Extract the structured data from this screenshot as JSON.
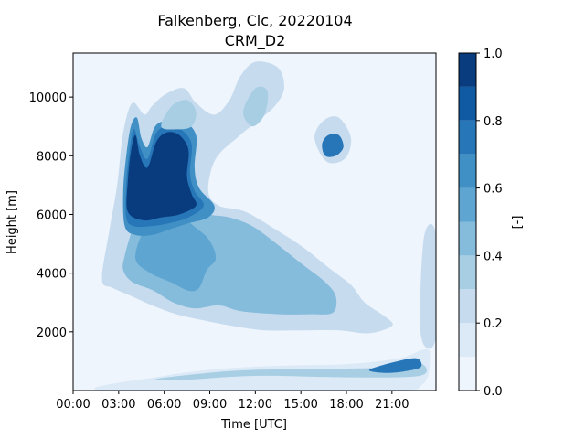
{
  "chart_data": {
    "type": "contour",
    "title": "Falkenberg, Clc, 20220104",
    "subtitle": "CRM_D2",
    "xlabel": "Time [UTC]",
    "ylabel": "Height [m]",
    "xlim": [
      0,
      23.9
    ],
    "ylim": [
      0,
      11500
    ],
    "xticks": [
      "00:00",
      "03:00",
      "06:00",
      "09:00",
      "12:00",
      "15:00",
      "18:00",
      "21:00"
    ],
    "xtick_values": [
      0,
      3,
      6,
      9,
      12,
      15,
      18,
      21
    ],
    "yticks": [
      "2000",
      "4000",
      "6000",
      "8000",
      "10000"
    ],
    "ytick_values": [
      2000,
      4000,
      6000,
      8000,
      10000
    ],
    "colorbar": {
      "label": "[-]",
      "ticks": [
        "0.0",
        "0.2",
        "0.4",
        "0.6",
        "0.8",
        "1.0"
      ],
      "tick_values": [
        0.0,
        0.2,
        0.4,
        0.6,
        0.8,
        1.0
      ],
      "levels": [
        0.0,
        0.1,
        0.2,
        0.3,
        0.4,
        0.5,
        0.6,
        0.7,
        0.8,
        0.9,
        1.0
      ],
      "colors": [
        "#eef5fd",
        "#dce9f7",
        "#c7dbef",
        "#a8cee4",
        "#85bcdc",
        "#5fa5d1",
        "#4090c5",
        "#2676b8",
        "#0f5aa3",
        "#083c7e"
      ]
    },
    "regions": [
      {
        "name": "high-cloud-mass",
        "level_index": 2,
        "points": [
          [
            1.9,
            3800
          ],
          [
            2.4,
            5500
          ],
          [
            2.9,
            7000
          ],
          [
            3.3,
            8800
          ],
          [
            3.9,
            9800
          ],
          [
            4.7,
            9400
          ],
          [
            5.2,
            9700
          ],
          [
            6.1,
            10100
          ],
          [
            7.3,
            10300
          ],
          [
            8.1,
            9800
          ],
          [
            9.3,
            9400
          ],
          [
            10.3,
            9900
          ],
          [
            11.0,
            10700
          ],
          [
            12.0,
            11200
          ],
          [
            13.5,
            11000
          ],
          [
            13.9,
            10300
          ],
          [
            13.3,
            9700
          ],
          [
            12.2,
            9200
          ],
          [
            11.0,
            8700
          ],
          [
            9.4,
            7900
          ],
          [
            8.9,
            6800
          ],
          [
            9.6,
            6300
          ],
          [
            11.3,
            6100
          ],
          [
            13.3,
            5500
          ],
          [
            15.1,
            4900
          ],
          [
            16.8,
            4200
          ],
          [
            18.3,
            3600
          ],
          [
            19.2,
            3000
          ],
          [
            20.6,
            2500
          ],
          [
            21.0,
            2200
          ],
          [
            19.5,
            1950
          ],
          [
            17.5,
            2050
          ],
          [
            15.0,
            2050
          ],
          [
            12.6,
            2050
          ],
          [
            10.5,
            2200
          ],
          [
            8.5,
            2400
          ],
          [
            6.8,
            2600
          ],
          [
            5.2,
            2900
          ],
          [
            3.9,
            3200
          ],
          [
            2.6,
            3500
          ]
        ]
      },
      {
        "name": "mid-cloud-deck",
        "level_index": 4,
        "points": [
          [
            3.3,
            4100
          ],
          [
            3.9,
            3700
          ],
          [
            5.3,
            3400
          ],
          [
            6.6,
            3000
          ],
          [
            8.0,
            2800
          ],
          [
            9.6,
            2900
          ],
          [
            11.1,
            2700
          ],
          [
            13.6,
            2600
          ],
          [
            15.6,
            2600
          ],
          [
            17.1,
            2650
          ],
          [
            17.3,
            3200
          ],
          [
            16.6,
            3700
          ],
          [
            15.1,
            4300
          ],
          [
            13.4,
            5000
          ],
          [
            11.8,
            5600
          ],
          [
            10.3,
            5900
          ],
          [
            9.0,
            6000
          ],
          [
            7.8,
            6300
          ],
          [
            6.8,
            6700
          ],
          [
            5.6,
            6900
          ],
          [
            4.6,
            6500
          ],
          [
            3.9,
            5500
          ],
          [
            3.4,
            4600
          ]
        ]
      },
      {
        "name": "mid-cloud-core",
        "level_index": 5,
        "points": [
          [
            4.1,
            4500
          ],
          [
            5.1,
            4000
          ],
          [
            6.4,
            3700
          ],
          [
            7.6,
            3400
          ],
          [
            8.3,
            3500
          ],
          [
            8.8,
            4100
          ],
          [
            9.4,
            4500
          ],
          [
            9.0,
            5100
          ],
          [
            8.2,
            5500
          ],
          [
            7.1,
            5900
          ],
          [
            5.7,
            6000
          ],
          [
            4.7,
            5500
          ]
        ]
      },
      {
        "name": "upper-cloud-outer",
        "level_index": 6,
        "points": [
          [
            3.4,
            5600
          ],
          [
            3.3,
            6800
          ],
          [
            3.5,
            8000
          ],
          [
            3.8,
            9000
          ],
          [
            4.2,
            9300
          ],
          [
            4.5,
            8600
          ],
          [
            4.9,
            8300
          ],
          [
            5.4,
            9000
          ],
          [
            6.2,
            9200
          ],
          [
            7.2,
            9200
          ],
          [
            8.1,
            8700
          ],
          [
            8.0,
            7600
          ],
          [
            8.3,
            6900
          ],
          [
            9.3,
            6300
          ],
          [
            8.9,
            5900
          ],
          [
            7.6,
            5700
          ],
          [
            6.4,
            5500
          ],
          [
            5.2,
            5300
          ],
          [
            4.1,
            5300
          ]
        ]
      },
      {
        "name": "upper-cloud-mid",
        "level_index": 7,
        "points": [
          [
            3.5,
            5900
          ],
          [
            3.5,
            7000
          ],
          [
            3.7,
            8100
          ],
          [
            4.0,
            8900
          ],
          [
            4.4,
            8300
          ],
          [
            4.9,
            7900
          ],
          [
            5.5,
            8800
          ],
          [
            6.3,
            9000
          ],
          [
            7.1,
            8900
          ],
          [
            7.8,
            8400
          ],
          [
            7.7,
            7400
          ],
          [
            8.0,
            6800
          ],
          [
            8.6,
            6300
          ],
          [
            7.6,
            5900
          ],
          [
            6.3,
            5700
          ],
          [
            5.1,
            5600
          ],
          [
            4.0,
            5600
          ]
        ]
      },
      {
        "name": "upper-cloud-core",
        "level_index": 9,
        "points": [
          [
            3.6,
            6100
          ],
          [
            3.6,
            7100
          ],
          [
            3.8,
            8100
          ],
          [
            4.1,
            8700
          ],
          [
            4.4,
            8000
          ],
          [
            4.9,
            7600
          ],
          [
            5.5,
            8500
          ],
          [
            6.2,
            8800
          ],
          [
            7.0,
            8700
          ],
          [
            7.6,
            8200
          ],
          [
            7.5,
            7300
          ],
          [
            7.8,
            6700
          ],
          [
            8.1,
            6300
          ],
          [
            7.0,
            6000
          ],
          [
            5.8,
            5900
          ],
          [
            4.6,
            5800
          ]
        ]
      },
      {
        "name": "top-cloud-lobe",
        "level_index": 3,
        "points": [
          [
            5.8,
            9000
          ],
          [
            6.5,
            9700
          ],
          [
            7.5,
            9900
          ],
          [
            8.1,
            9500
          ],
          [
            7.8,
            9000
          ],
          [
            6.8,
            8900
          ]
        ]
      },
      {
        "name": "upper-right-patch",
        "level_index": 3,
        "points": [
          [
            11.2,
            9500
          ],
          [
            12.0,
            10300
          ],
          [
            12.8,
            10200
          ],
          [
            12.6,
            9400
          ],
          [
            11.8,
            9000
          ]
        ]
      },
      {
        "name": "isolated-cloud-outer",
        "level_index": 2,
        "points": [
          [
            15.9,
            8600
          ],
          [
            16.5,
            9200
          ],
          [
            17.5,
            9300
          ],
          [
            18.3,
            8600
          ],
          [
            17.9,
            7900
          ],
          [
            16.7,
            7800
          ]
        ]
      },
      {
        "name": "isolated-cloud-core",
        "level_index": 7,
        "points": [
          [
            16.4,
            8400
          ],
          [
            16.8,
            8700
          ],
          [
            17.5,
            8700
          ],
          [
            17.8,
            8300
          ],
          [
            17.3,
            8000
          ],
          [
            16.6,
            8000
          ]
        ]
      },
      {
        "name": "low-cloud-band-outer",
        "level_index": 1,
        "points": [
          [
            2.0,
            0
          ],
          [
            6.0,
            500
          ],
          [
            10.0,
            750
          ],
          [
            14.0,
            850
          ],
          [
            18.0,
            900
          ],
          [
            21.5,
            1100
          ],
          [
            23.1,
            1400
          ],
          [
            23.5,
            1200
          ],
          [
            23.0,
            200
          ],
          [
            20.0,
            0
          ]
        ]
      },
      {
        "name": "low-cloud-band-mid",
        "level_index": 3,
        "points": [
          [
            5.5,
            400
          ],
          [
            10.0,
            650
          ],
          [
            14.0,
            730
          ],
          [
            18.5,
            750
          ],
          [
            21.5,
            800
          ],
          [
            23.0,
            900
          ],
          [
            22.8,
            500
          ],
          [
            18.0,
            450
          ],
          [
            12.0,
            500
          ],
          [
            7.0,
            350
          ]
        ]
      },
      {
        "name": "low-cloud-band-core",
        "level_index": 7,
        "points": [
          [
            19.5,
            700
          ],
          [
            21.0,
            950
          ],
          [
            22.6,
            1100
          ],
          [
            22.9,
            800
          ],
          [
            21.8,
            650
          ],
          [
            20.5,
            600
          ]
        ]
      },
      {
        "name": "right-edge-cloud",
        "level_index": 4,
        "points": [
          [
            23.3,
            2800
          ],
          [
            23.3,
            4500
          ],
          [
            23.9,
            4800
          ],
          [
            23.9,
            2800
          ]
        ]
      },
      {
        "name": "right-edge-cloud-outer",
        "level_index": 2,
        "points": [
          [
            22.9,
            1900
          ],
          [
            23.1,
            5200
          ],
          [
            23.9,
            5300
          ],
          [
            23.9,
            1800
          ]
        ]
      }
    ]
  }
}
